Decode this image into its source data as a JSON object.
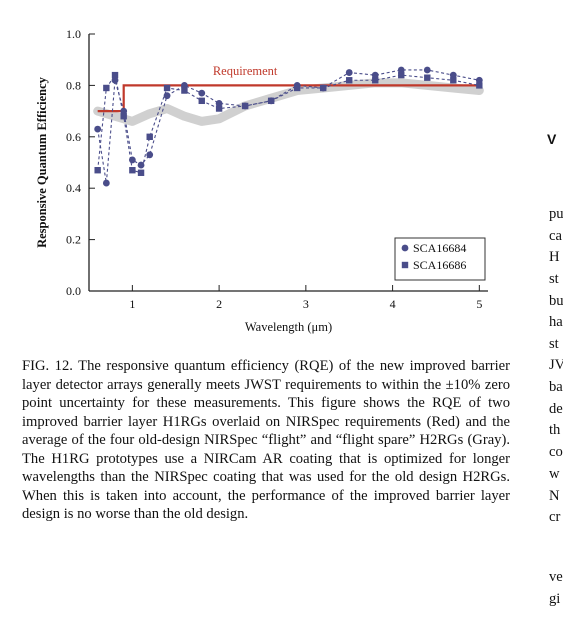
{
  "figure": {
    "chart_data": {
      "type": "line",
      "xlabel": "Wavelength (μm)",
      "ylabel": "Responsive Quantum Efficiency",
      "xlim": [
        0.5,
        5.1
      ],
      "ylim": [
        0.0,
        1.0
      ],
      "xticks": [
        1,
        2,
        3,
        4,
        5
      ],
      "yticks": [
        0.0,
        0.2,
        0.4,
        0.6,
        0.8,
        1.0
      ],
      "ytick_labels": [
        "0.0",
        "0.2",
        "0.4",
        "0.6",
        "0.8",
        "1.0"
      ],
      "legend_position": "bottom-right",
      "annotation": "Requirement",
      "series": [
        {
          "name": "SCA16684",
          "marker": "circle",
          "color": "#4a4d8a",
          "x": [
            0.6,
            0.7,
            0.8,
            0.9,
            1.0,
            1.1,
            1.2,
            1.4,
            1.6,
            1.8,
            2.0,
            2.3,
            2.6,
            2.9,
            3.2,
            3.5,
            3.8,
            4.1,
            4.4,
            4.7,
            5.0
          ],
          "y": [
            0.63,
            0.42,
            0.82,
            0.7,
            0.51,
            0.49,
            0.53,
            0.76,
            0.8,
            0.77,
            0.73,
            0.72,
            0.74,
            0.8,
            0.79,
            0.85,
            0.84,
            0.86,
            0.86,
            0.84,
            0.82
          ]
        },
        {
          "name": "SCA16686",
          "marker": "square",
          "color": "#4a4d8a",
          "x": [
            0.6,
            0.7,
            0.8,
            0.9,
            1.0,
            1.1,
            1.2,
            1.4,
            1.6,
            1.8,
            2.0,
            2.3,
            2.6,
            2.9,
            3.2,
            3.5,
            3.8,
            4.1,
            4.4,
            4.7,
            5.0
          ],
          "y": [
            0.47,
            0.79,
            0.84,
            0.68,
            0.47,
            0.46,
            0.6,
            0.79,
            0.78,
            0.74,
            0.71,
            0.72,
            0.74,
            0.79,
            0.79,
            0.82,
            0.82,
            0.84,
            0.83,
            0.82,
            0.8
          ]
        },
        {
          "name": "",
          "role": "requirement",
          "color": "#c0392b",
          "x": [
            0.6,
            0.9,
            0.9,
            1.0,
            1.0,
            5.0
          ],
          "y": [
            0.7,
            0.7,
            0.8,
            0.8,
            0.8,
            0.8
          ]
        },
        {
          "name": "",
          "role": "old-design average",
          "color": "#c8c8c8",
          "x": [
            0.6,
            0.8,
            1.0,
            1.2,
            1.4,
            1.6,
            1.8,
            2.0,
            2.3,
            2.6,
            2.9,
            3.2,
            3.5,
            3.8,
            4.1,
            4.4,
            4.7,
            5.0
          ],
          "y": [
            0.7,
            0.68,
            0.66,
            0.69,
            0.71,
            0.68,
            0.66,
            0.67,
            0.72,
            0.75,
            0.78,
            0.79,
            0.8,
            0.81,
            0.81,
            0.8,
            0.79,
            0.78
          ]
        }
      ]
    }
  },
  "caption": {
    "label": "FIG. 12.",
    "text": "The responsive quantum efficiency (RQE) of the new improved barrier layer detector arrays generally meets JWST requirements to within the ±10% zero point uncertainty for these measurements. This figure shows the RQE of two improved barrier layer H1RGs overlaid on NIRSpec requirements (Red) and the average of the four old-design NIRSpec “flight” and “flight spare” H2RGs (Gray). The H1RG prototypes use a NIRCam AR coating that is optimized for longer wavelengths than the NIRSpec coating that was used for the old design H2RGs. When this is taken into account, the performance of the improved barrier layer design is no worse than the old design."
  },
  "right_column": {
    "heading": "V",
    "lines": [
      "pu",
      "ca",
      "H",
      "st",
      "bu",
      "ha",
      "st",
      "JV",
      "ba",
      "de",
      "th",
      "co",
      "w",
      "N",
      "cr",
      "",
      "ve",
      "gi"
    ]
  }
}
